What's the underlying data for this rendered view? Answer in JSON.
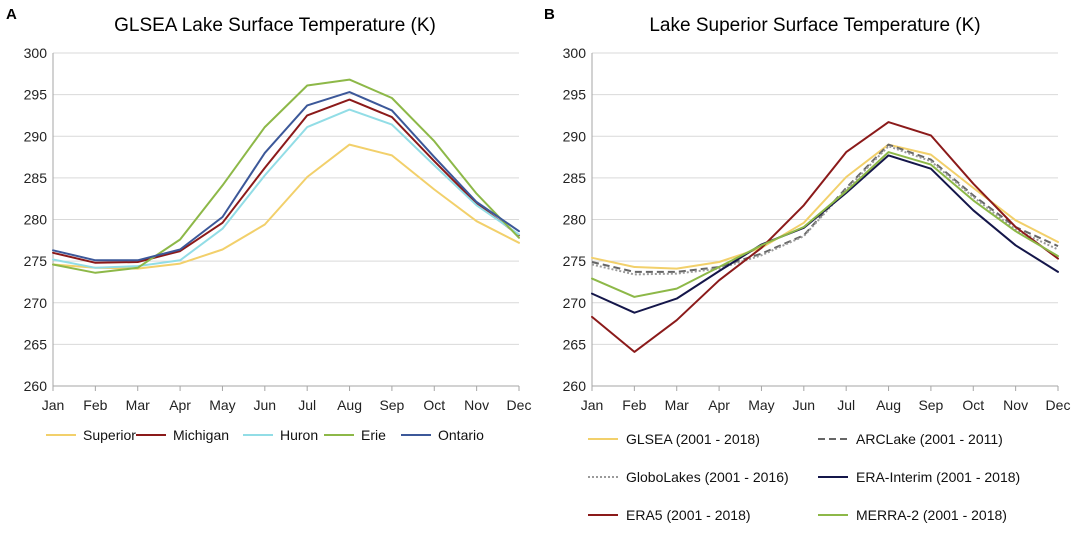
{
  "chart_data": [
    {
      "type": "line",
      "panel": "A",
      "title": "GLSEA Lake Surface Temperature (K)",
      "xlabel": "",
      "ylabel": "",
      "ylim": [
        260,
        300
      ],
      "yticks": [
        260,
        265,
        270,
        275,
        280,
        285,
        290,
        295,
        300
      ],
      "categories": [
        "Jan",
        "Feb",
        "Mar",
        "Apr",
        "May",
        "Jun",
        "Jul",
        "Aug",
        "Sep",
        "Oct",
        "Nov",
        "Dec"
      ],
      "grid": "horizontal",
      "legend_position": "bottom",
      "series": [
        {
          "name": "Superior",
          "color": "#f2d06b",
          "dash": "solid",
          "values": [
            274.6,
            274.2,
            274.1,
            274.7,
            276.4,
            279.4,
            285.1,
            289.0,
            287.7,
            283.6,
            279.8,
            277.2
          ]
        },
        {
          "name": "Michigan",
          "color": "#8b1a1a",
          "dash": "solid",
          "values": [
            276.0,
            274.8,
            274.9,
            276.2,
            279.6,
            286.2,
            292.5,
            294.4,
            292.3,
            287.0,
            281.9,
            278.1
          ]
        },
        {
          "name": "Huron",
          "color": "#92dde6",
          "dash": "solid",
          "values": [
            275.2,
            274.2,
            274.4,
            275.1,
            278.9,
            285.3,
            291.1,
            293.2,
            291.4,
            286.5,
            281.7,
            278.2
          ]
        },
        {
          "name": "Erie",
          "color": "#8db848",
          "dash": "solid",
          "values": [
            274.6,
            273.6,
            274.2,
            277.6,
            284.1,
            291.1,
            296.1,
            296.8,
            294.6,
            289.4,
            283.1,
            277.8
          ]
        },
        {
          "name": "Ontario",
          "color": "#3c5899",
          "dash": "solid",
          "values": [
            276.3,
            275.1,
            275.1,
            276.4,
            280.3,
            288.0,
            293.7,
            295.3,
            293.1,
            287.5,
            282.1,
            278.6
          ]
        }
      ]
    },
    {
      "type": "line",
      "panel": "B",
      "title": "Lake Superior Surface Temperature (K)",
      "xlabel": "",
      "ylabel": "",
      "ylim": [
        260,
        300
      ],
      "yticks": [
        260,
        265,
        270,
        275,
        280,
        285,
        290,
        295,
        300
      ],
      "categories": [
        "Jan",
        "Feb",
        "Mar",
        "Apr",
        "May",
        "Jun",
        "Jul",
        "Aug",
        "Sep",
        "Oct",
        "Nov",
        "Dec"
      ],
      "grid": "horizontal",
      "legend_position": "bottom",
      "series": [
        {
          "name": "GLSEA (2001 - 2018)",
          "color": "#f2d06b",
          "dash": "solid",
          "values": [
            275.4,
            274.3,
            274.1,
            274.9,
            276.6,
            279.6,
            285.1,
            289.0,
            287.8,
            283.8,
            279.9,
            277.3
          ]
        },
        {
          "name": "ARCLake (2001 - 2011)",
          "color": "#666666",
          "dash": "dashed",
          "values": [
            274.9,
            273.7,
            273.7,
            274.3,
            275.9,
            278.1,
            283.8,
            289.0,
            287.2,
            282.9,
            279.1,
            276.8
          ]
        },
        {
          "name": "GloboLakes (2001 - 2016)",
          "color": "#9a9a9a",
          "dash": "dotted",
          "values": [
            274.6,
            273.4,
            273.5,
            274.1,
            275.7,
            278.0,
            283.6,
            288.8,
            287.0,
            282.7,
            278.8,
            276.4
          ]
        },
        {
          "name": "ERA-Interim (2001 - 2018)",
          "color": "#14164a",
          "dash": "solid",
          "values": [
            271.1,
            268.8,
            270.5,
            273.8,
            277.0,
            279.0,
            283.2,
            287.7,
            286.1,
            281.1,
            276.9,
            273.7
          ]
        },
        {
          "name": "ERA5 (2001 - 2018)",
          "color": "#8b1a1a",
          "dash": "solid",
          "values": [
            268.3,
            264.1,
            267.9,
            272.7,
            276.6,
            281.7,
            288.1,
            291.7,
            290.1,
            284.3,
            279.1,
            275.3
          ]
        },
        {
          "name": "MERRA-2 (2001 - 2018)",
          "color": "#8db848",
          "dash": "solid",
          "values": [
            272.9,
            270.7,
            271.7,
            274.3,
            276.9,
            279.1,
            283.4,
            288.1,
            286.6,
            282.3,
            278.6,
            275.6
          ]
        }
      ]
    }
  ]
}
